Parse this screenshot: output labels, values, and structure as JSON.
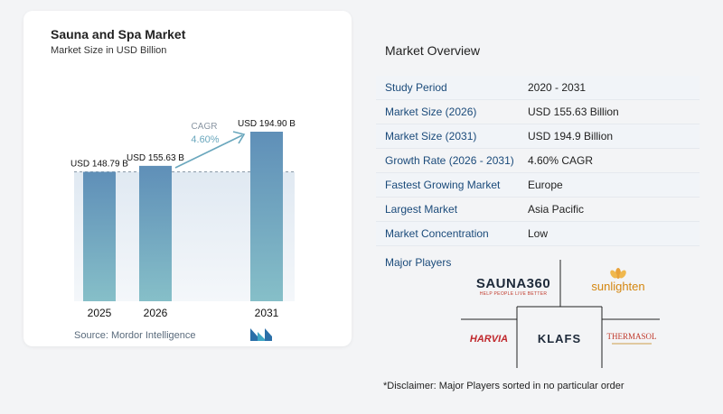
{
  "chart": {
    "title": "Sauna and Spa Market",
    "subtitle": "Market Size in USD Billion",
    "source": "Source:  Mordor Intelligence"
  },
  "chart_data": {
    "type": "bar",
    "title": "Sauna and Spa Market",
    "subtitle": "Market Size in USD Billion",
    "categories": [
      "2025",
      "2026",
      "2031"
    ],
    "values": [
      148.79,
      155.63,
      194.9
    ],
    "data_labels": [
      "USD 148.79 B",
      "USD 155.63 B",
      "USD 194.90 B"
    ],
    "cagr_label": "CAGR",
    "cagr_value": "4.60%",
    "ylim": [
      0,
      194.9
    ],
    "grid": false,
    "bar_color": "#6b93b8",
    "last_bar_color": "#5e9bc4"
  },
  "overview": {
    "title": "Market Overview",
    "rows": [
      {
        "label": "Study Period",
        "value": "2020 - 2031"
      },
      {
        "label": "Market Size (2026)",
        "value": "USD 155.63 Billion"
      },
      {
        "label": "Market Size (2031)",
        "value": "USD 194.9 Billion"
      },
      {
        "label": "Growth Rate (2026 - 2031)",
        "value": "4.60% CAGR"
      },
      {
        "label": "Fastest Growing Market",
        "value": "Europe"
      },
      {
        "label": "Largest Market",
        "value": "Asia Pacific"
      },
      {
        "label": "Market Concentration",
        "value": "Low"
      }
    ],
    "players_label": "Major Players",
    "players": {
      "sauna360": "SAUNA360",
      "sauna360_tag": "HELP PEOPLE LIVE BETTER",
      "sunlighten": "sunlighten",
      "harvia": "HARVIA",
      "klafs": "KLAFS",
      "thermasol": "THERMASOL"
    },
    "disclaimer": "*Disclaimer: Major Players sorted in no particular order"
  },
  "colors": {
    "label_blue": "#1a4a7a",
    "bar": "#6b93b8",
    "accent_teal": "#6aa7bd"
  }
}
